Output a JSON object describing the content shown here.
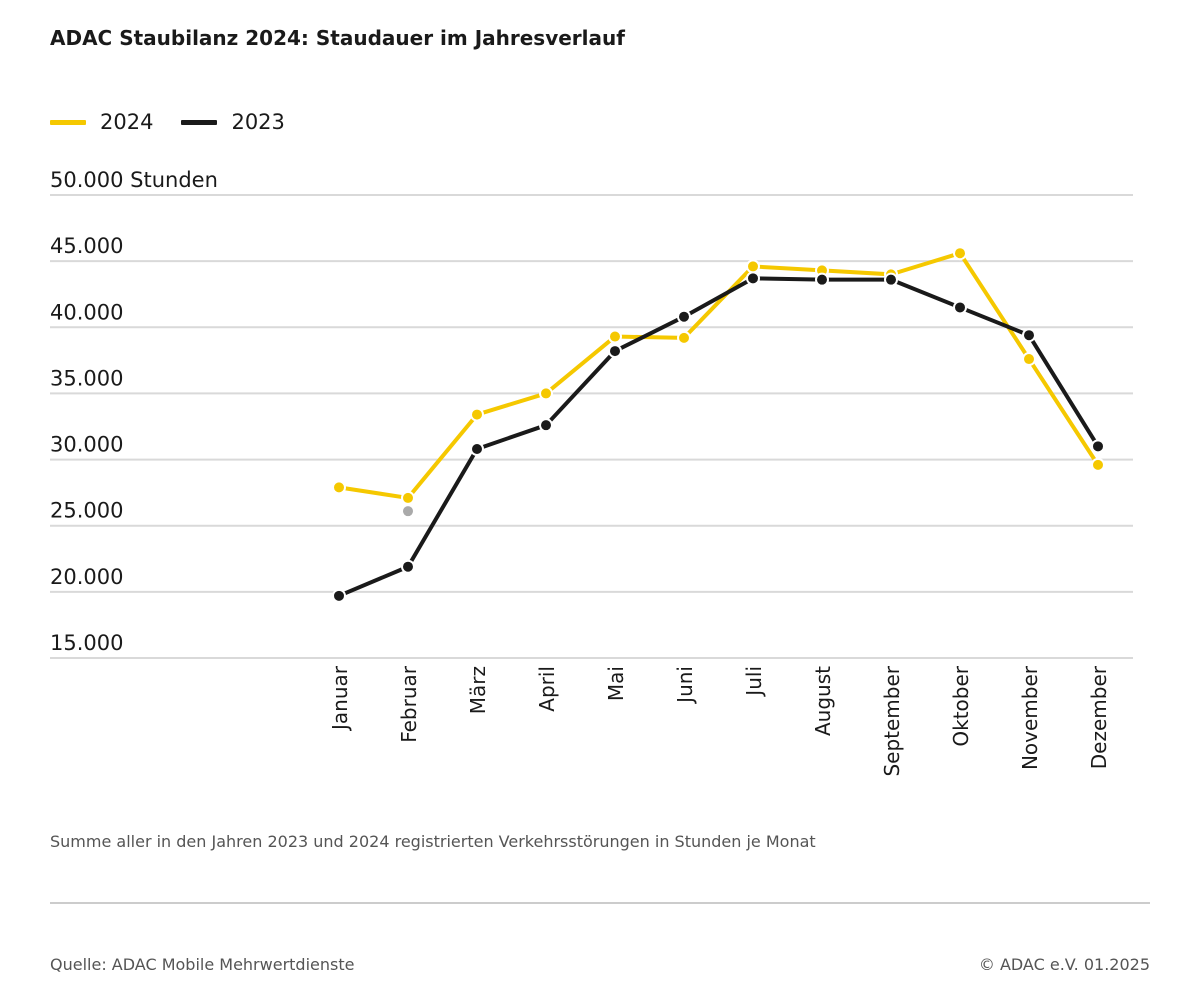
{
  "title": "ADAC Staubilanz 2024: Staudauer im Jahresverlauf",
  "footer": {
    "note": "Summe aller in den Jahren 2023 und 2024 registrierten Verkehrsstörungen in Stunden je Monat",
    "source": "Quelle: ADAC Mobile Mehrwertdienste",
    "copyright": "© ADAC e.V. 01.2025"
  },
  "colors": {
    "series_2024": "#f5c800",
    "series_2023": "#1a1a1a",
    "marker_gray": "#aaaaaa",
    "grid": "#d9d9d9"
  },
  "chart_data": {
    "type": "line",
    "title": "ADAC Staubilanz 2024: Staudauer im Jahresverlauf",
    "ylabel": "Stunden",
    "ylim": [
      15000,
      50000
    ],
    "grid": true,
    "legend_position": "top-left",
    "categories": [
      "Januar",
      "Februar",
      "März",
      "April",
      "Mai",
      "Juni",
      "Juli",
      "August",
      "September",
      "Oktober",
      "November",
      "Dezember"
    ],
    "y_ticks": [
      {
        "value": 50000,
        "label": "50.000 Stunden"
      },
      {
        "value": 45000,
        "label": "45.000"
      },
      {
        "value": 40000,
        "label": "40.000"
      },
      {
        "value": 35000,
        "label": "35.000"
      },
      {
        "value": 30000,
        "label": "30.000"
      },
      {
        "value": 25000,
        "label": "25.000"
      },
      {
        "value": 20000,
        "label": "20.000"
      },
      {
        "value": 15000,
        "label": "15.000"
      }
    ],
    "series": [
      {
        "name": "2024",
        "values": [
          27900,
          27100,
          33400,
          35000,
          39300,
          39200,
          44600,
          44300,
          44000,
          45600,
          37600,
          29600
        ]
      },
      {
        "name": "2023",
        "values": [
          19700,
          21900,
          30800,
          32600,
          38200,
          40800,
          43700,
          43600,
          43600,
          41500,
          39400,
          31000
        ]
      }
    ],
    "extra_markers": [
      {
        "category": "Februar",
        "value": 26100
      }
    ]
  }
}
